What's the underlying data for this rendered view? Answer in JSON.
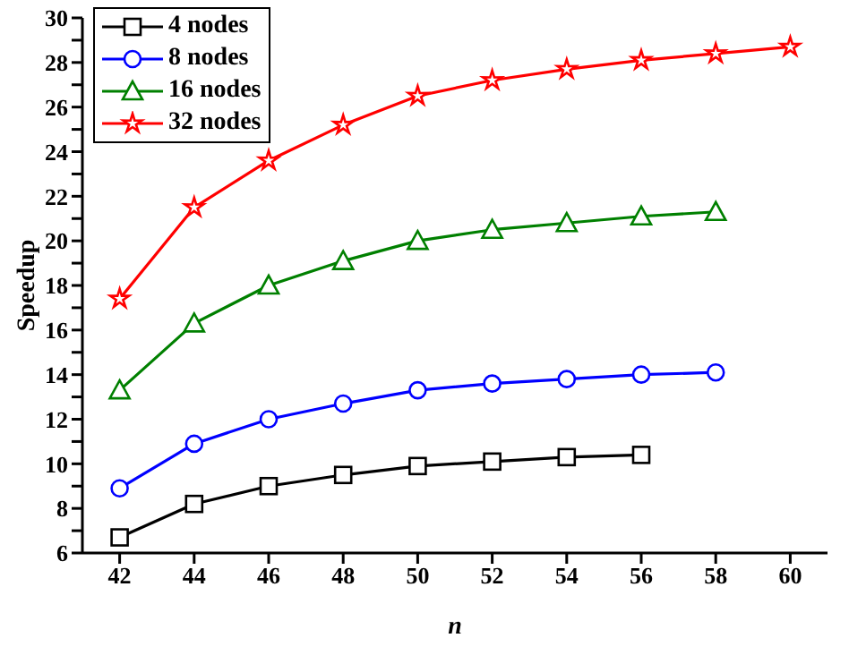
{
  "chart_data": {
    "type": "line",
    "xlabel": "n",
    "ylabel": "Speedup",
    "xlim": [
      41,
      61
    ],
    "xticks": [
      42,
      44,
      46,
      48,
      50,
      52,
      54,
      56,
      58,
      60
    ],
    "ylim": [
      6,
      30
    ],
    "yticks": [
      6,
      {
        "value": 7,
        "label": null
      },
      8,
      {
        "value": 9,
        "label": null
      },
      10,
      {
        "value": 11,
        "label": null
      },
      12,
      {
        "value": 13,
        "label": null
      },
      14,
      {
        "value": 15,
        "label": null
      },
      16,
      {
        "value": 17,
        "label": null
      },
      18,
      {
        "value": 19,
        "label": null
      },
      20,
      {
        "value": 21,
        "label": null
      },
      22,
      {
        "value": 23,
        "label": null
      },
      24,
      {
        "value": 25,
        "label": null
      },
      26,
      {
        "value": 27,
        "label": null
      },
      28,
      {
        "value": 29,
        "label": null
      },
      30
    ],
    "grid": false,
    "legend": "top left",
    "line_style": "solid",
    "x": [
      42,
      44,
      46,
      48,
      50,
      52,
      54,
      56,
      58,
      60
    ],
    "series": [
      {
        "name": "4 nodes",
        "color": "#000000",
        "marker": "square",
        "values": [
          6.7,
          8.2,
          9.0,
          9.5,
          9.9,
          10.1,
          10.3,
          10.4,
          null,
          null
        ]
      },
      {
        "name": "8 nodes",
        "color": "#0000ff",
        "marker": "circle",
        "values": [
          8.9,
          10.9,
          12.0,
          12.7,
          13.3,
          13.6,
          13.8,
          14.0,
          14.1,
          null
        ]
      },
      {
        "name": "16 nodes",
        "color": "#008000",
        "marker": "triangle",
        "values": [
          13.3,
          16.3,
          18.0,
          19.1,
          20.0,
          20.5,
          20.8,
          21.1,
          21.3,
          null
        ]
      },
      {
        "name": "32 nodes",
        "color": "#ff0000",
        "marker": "star",
        "values": [
          17.4,
          21.5,
          23.6,
          25.2,
          26.5,
          27.2,
          27.7,
          28.1,
          28.4,
          28.7
        ]
      }
    ]
  }
}
